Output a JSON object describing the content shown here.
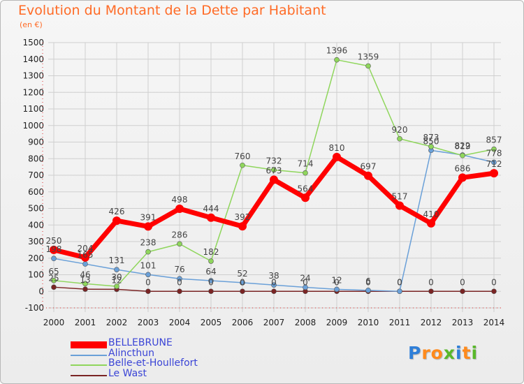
{
  "chart_data": {
    "type": "line",
    "title": "Evolution du Montant de la Dette par Habitant",
    "subtitle": "(en €)",
    "ylim": [
      -100,
      1500
    ],
    "yticks": [
      "-100",
      "0",
      "100",
      "200",
      "300",
      "400",
      "500",
      "600",
      "700",
      "800",
      "900",
      "1000",
      "1100",
      "1200",
      "1300",
      "1400",
      "1500"
    ],
    "categories": [
      "2000",
      "2001",
      "2002",
      "2003",
      "2004",
      "2005",
      "2006",
      "2007",
      "2008",
      "2009",
      "2010",
      "2011",
      "2012",
      "2013",
      "2014"
    ],
    "grid": true,
    "legend_position": "bottom-left",
    "series": [
      {
        "name": "BELLEBRUNE",
        "color": "#ff0000",
        "values": [
          250,
          204,
          426,
          391,
          498,
          444,
          392,
          673,
          564,
          810,
          697,
          517,
          410,
          686,
          712
        ],
        "labels": [
          "250",
          "204",
          "426",
          "391",
          "498",
          "444",
          "392",
          "673",
          "564",
          "810",
          "697",
          "517",
          "410",
          "686",
          "712"
        ]
      },
      {
        "name": "Alincthun",
        "color": "#6aa0d8",
        "values": [
          198,
          165,
          131,
          101,
          76,
          64,
          52,
          38,
          24,
          12,
          6,
          0,
          850,
          822,
          778
        ],
        "labels": [
          "198",
          "165",
          "131",
          "101",
          "76",
          "64",
          "52",
          "38",
          "24",
          "12",
          "6",
          "0",
          "850",
          "822",
          "778"
        ]
      },
      {
        "name": "Belle-et-Houllefort",
        "color": "#8fd65c",
        "values": [
          65,
          46,
          30,
          238,
          286,
          182,
          760,
          732,
          714,
          1396,
          1359,
          920,
          873,
          819,
          857
        ],
        "labels": [
          "65",
          "46",
          "30",
          "238",
          "286",
          "182",
          "760",
          "732",
          "714",
          "1396",
          "1359",
          "920",
          "873",
          "819",
          "857"
        ]
      },
      {
        "name": "Le Wast",
        "color": "#7a2424",
        "values": [
          25,
          13,
          12,
          0,
          0,
          0,
          0,
          0,
          0,
          0,
          0,
          0,
          0,
          0,
          0
        ],
        "labels": [
          "25",
          "13",
          "12",
          "0",
          "0",
          "0",
          "0",
          "0",
          "0",
          "0",
          "0",
          "0",
          "0",
          "0",
          "0"
        ]
      }
    ]
  },
  "logo": {
    "text": "Proxiti",
    "letter_colors": [
      "#2f7fd8",
      "#ff8a1c",
      "#ff8a1c",
      "#59b82a",
      "#2f7fd8",
      "#ff8a1c",
      "#59b82a"
    ]
  }
}
